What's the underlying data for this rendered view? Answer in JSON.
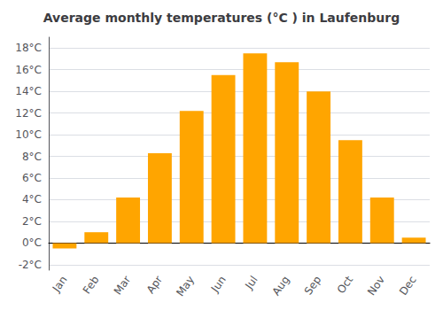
{
  "chart_data": {
    "type": "bar",
    "title": "Average monthly temperatures (°C ) in Laufenburg",
    "categories": [
      "Jan",
      "Feb",
      "Mar",
      "Apr",
      "May",
      "Jun",
      "Jul",
      "Aug",
      "Sep",
      "Oct",
      "Nov",
      "Dec"
    ],
    "values": [
      -0.5,
      1.0,
      4.2,
      8.3,
      12.2,
      15.5,
      17.5,
      16.7,
      14.0,
      9.5,
      4.2,
      0.5
    ],
    "color": "#FFA500",
    "ylim": [
      -2.5,
      19
    ],
    "yticks": [
      {
        "value": -2,
        "label": "-2°C"
      },
      {
        "value": 0,
        "label": "0°C"
      },
      {
        "value": 2,
        "label": "2°C"
      },
      {
        "value": 4,
        "label": "4°C"
      },
      {
        "value": 6,
        "label": "6°C"
      },
      {
        "value": 8,
        "label": "8°C"
      },
      {
        "value": 10,
        "label": "10°C"
      },
      {
        "value": 12,
        "label": "12°C"
      },
      {
        "value": 14,
        "label": "14°C"
      },
      {
        "value": 16,
        "label": "16°C"
      },
      {
        "value": 18,
        "label": "18°C"
      }
    ],
    "grid": true
  }
}
